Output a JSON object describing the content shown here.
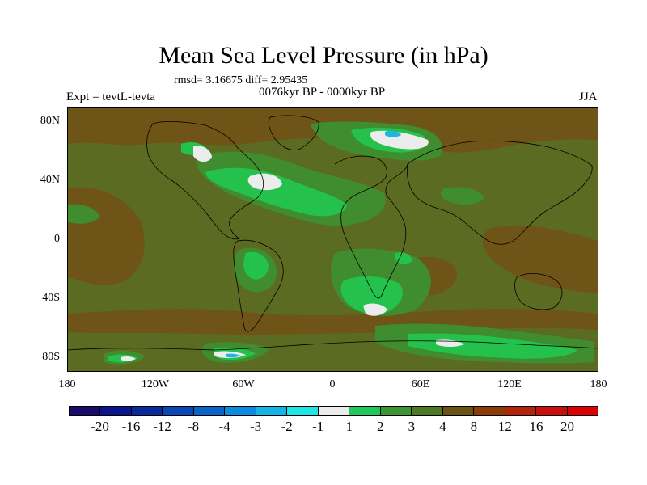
{
  "title": "Mean Sea Level Pressure (in hPa)",
  "stats": "rmsd= 3.16675 diff= 2.95435",
  "experiment": "Expt = tevtL-tevta",
  "period": "0076kyr BP - 0000kyr BP",
  "season": "JJA",
  "y_axis_labels": [
    "80N",
    "40N",
    "0",
    "40S",
    "80S"
  ],
  "x_axis_labels": [
    "180",
    "120W",
    "60W",
    "0",
    "60E",
    "120E",
    "180"
  ],
  "colorbar": {
    "levels": [
      "-20",
      "-16",
      "-12",
      "-8",
      "-4",
      "-3",
      "-2",
      "-1",
      "1",
      "2",
      "3",
      "4",
      "8",
      "12",
      "16",
      "20"
    ],
    "colors": [
      "#1a0a6e",
      "#0a148c",
      "#0a2a9c",
      "#0a46b4",
      "#0a64c8",
      "#0a8ce0",
      "#14b4e6",
      "#1ee6e6",
      "#ececec",
      "#1ec85a",
      "#3c9632",
      "#4b7a23",
      "#6b5314",
      "#8c3c0a",
      "#b4230a",
      "#c80f0a",
      "#dc0000"
    ]
  },
  "map_colors": {
    "base": "#5b6c22",
    "brown": "#6e5416",
    "green": "#3f8d2e",
    "bright": "#24c24c",
    "white": "#ececec",
    "cyan": "#20b4e0",
    "coast": "#000000"
  }
}
